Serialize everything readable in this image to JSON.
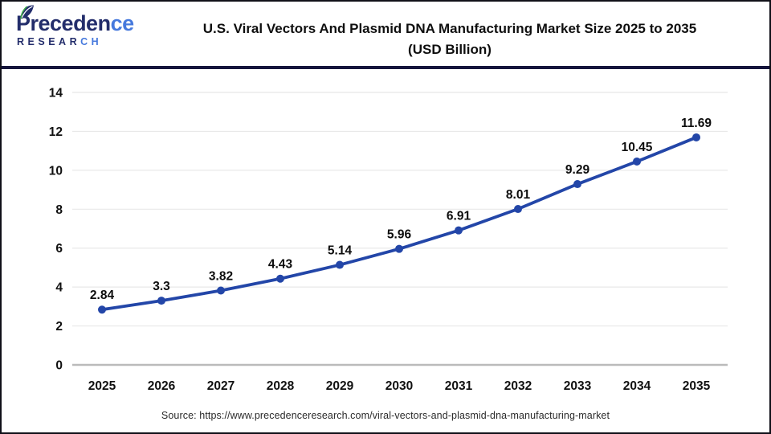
{
  "header": {
    "logo": {
      "brand_top_dark": "Preceden",
      "brand_top_light": "ce",
      "brand_bottom_dark": "RESEAR",
      "brand_bottom_light": "CH",
      "navy": "#232d6b",
      "light_blue": "#4679dd",
      "leaf_green": "#3fae49"
    },
    "title_line1": "U.S. Viral Vectors And Plasmid DNA Manufacturing Market Size 2025 to 2035",
    "title_line2": "(USD Billion)",
    "divider_color": "#15153c"
  },
  "chart_data": {
    "type": "line",
    "title": "U.S. Viral Vectors And Plasmid DNA Manufacturing Market Size 2025 to 2035 (USD Billion)",
    "x": [
      "2025",
      "2026",
      "2027",
      "2028",
      "2029",
      "2030",
      "2031",
      "2032",
      "2033",
      "2034",
      "2035"
    ],
    "series": [
      {
        "name": "U.S. Viral Vectors And Plasmid DNA Manufacturing Market Size (USD Billion)",
        "values": [
          2.84,
          3.3,
          3.82,
          4.43,
          5.14,
          5.96,
          6.91,
          8.01,
          9.29,
          10.45,
          11.69
        ]
      }
    ],
    "value_labels": [
      "2.84",
      "3.3",
      "3.82",
      "4.43",
      "5.14",
      "5.96",
      "6.91",
      "8.01",
      "9.29",
      "10.45",
      "11.69"
    ],
    "xlabel": "",
    "ylabel": "",
    "ylim": [
      0,
      14
    ],
    "yticks": [
      0,
      2,
      4,
      6,
      8,
      10,
      12,
      14
    ],
    "grid": true,
    "legend_position": "none",
    "line_color": "#2346a8",
    "marker": "circle",
    "gridline_color": "#e8e8e8",
    "axis_line_color": "#bbbbbb",
    "label_color": "#111111"
  },
  "footer": {
    "source_text": "Source: https://www.precedenceresearch.com/viral-vectors-and-plasmid-dna-manufacturing-market"
  }
}
